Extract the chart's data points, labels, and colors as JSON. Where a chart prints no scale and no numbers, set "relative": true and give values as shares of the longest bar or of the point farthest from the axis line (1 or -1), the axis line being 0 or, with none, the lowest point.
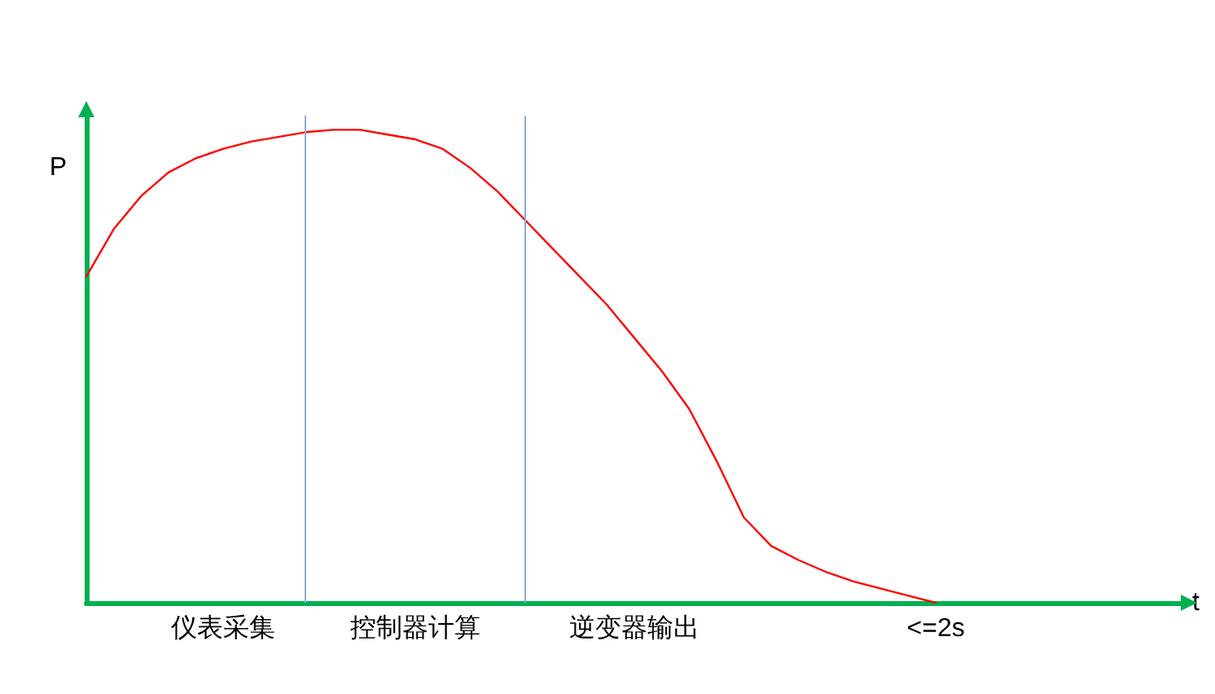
{
  "chart_data": {
    "type": "line",
    "relative": true,
    "xlabel": "t",
    "ylabel": "P",
    "marker": "none",
    "line_style": "solid",
    "categories": [
      null,
      null,
      null,
      null,
      null,
      "仪表采集",
      null,
      null,
      null,
      null,
      null,
      null,
      "控制器计算",
      null,
      null,
      null,
      null,
      null,
      null,
      null,
      "逆变器输出",
      null,
      null,
      null,
      null,
      null,
      null,
      null,
      null,
      null,
      null,
      "<=2s",
      null,
      null,
      null,
      null,
      null,
      null,
      null,
      null,
      null
    ],
    "series": [
      {
        "color": "#ff0000",
        "values": [
          0.69,
          0.79,
          0.86,
          0.91,
          0.94,
          0.96,
          0.975,
          0.985,
          0.995,
          1,
          1,
          0.99,
          0.98,
          0.96,
          0.92,
          0.87,
          0.81,
          0.75,
          0.69,
          0.63,
          0.56,
          0.49,
          0.41,
          0.3,
          0.18,
          0.12,
          0.09,
          0.065,
          0.045,
          0.03,
          0.015,
          0,
          null,
          null,
          null,
          null,
          null,
          null,
          null,
          null,
          null
        ]
      }
    ]
  }
}
